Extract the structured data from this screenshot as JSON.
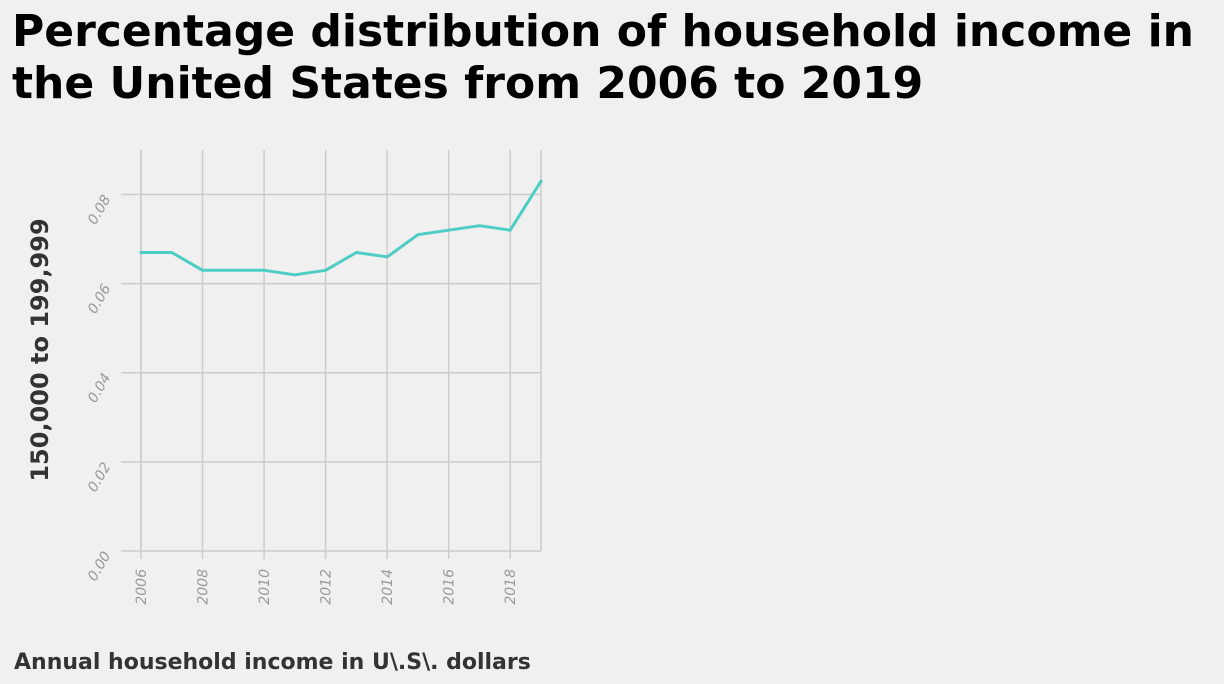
{
  "chart_data": {
    "type": "line",
    "title": "Percentage distribution of household income in the United States from 2006 to 2019",
    "xlabel": "Annual household income in U\\.S\\. dollars",
    "ylabel": "150,000 to 199,999",
    "x": [
      2006,
      2007,
      2008,
      2009,
      2010,
      2011,
      2012,
      2013,
      2014,
      2015,
      2016,
      2017,
      2018,
      2019
    ],
    "series": [
      {
        "values": [
          0.067,
          0.067,
          0.063,
          0.063,
          0.063,
          0.062,
          0.063,
          0.067,
          0.066,
          0.071,
          0.072,
          0.073,
          0.072,
          0.083
        ]
      }
    ],
    "xlim": [
      2006,
      2019
    ],
    "ylim": [
      0,
      0.09
    ],
    "xticks": [
      2006,
      2008,
      2010,
      2012,
      2014,
      2016,
      2018
    ],
    "yticks": [
      "0.00",
      "0.02",
      "0.04",
      "0.06",
      "0.08"
    ],
    "grid": true,
    "legend": "none",
    "line_color": "#4ecdc4",
    "grid_color": "#cccccc",
    "background_color": "#f0f0f0"
  }
}
